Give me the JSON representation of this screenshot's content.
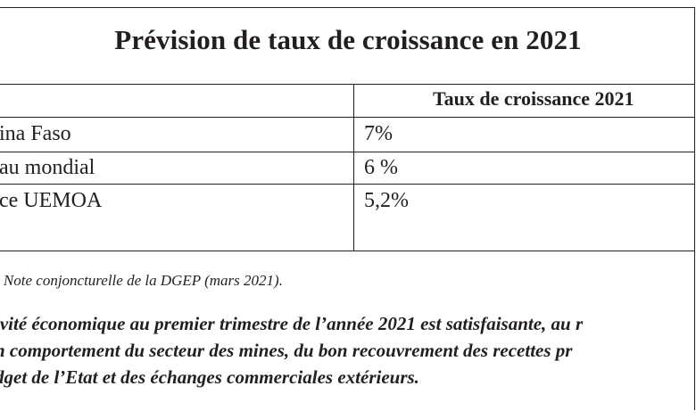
{
  "title": "Prévision de taux de croissance en 2021",
  "table": {
    "column_header": "Taux de croissance 2021",
    "rows": [
      {
        "label": "ina Faso",
        "value": "7%"
      },
      {
        "label": "au mondial",
        "value": "6 %"
      },
      {
        "label": "ce UEMOA",
        "value": "5,2%"
      }
    ]
  },
  "source": ": Note conjoncturelle de la DGEP (mars 2021).",
  "paragraph_lines": [
    "ivité économique au premier trimestre de l’année 2021 est satisfaisante, au r",
    "n comportement du secteur des mines, du bon recouvrement des recettes pr",
    "dget de l’Etat et des échanges commerciales extérieurs."
  ]
}
